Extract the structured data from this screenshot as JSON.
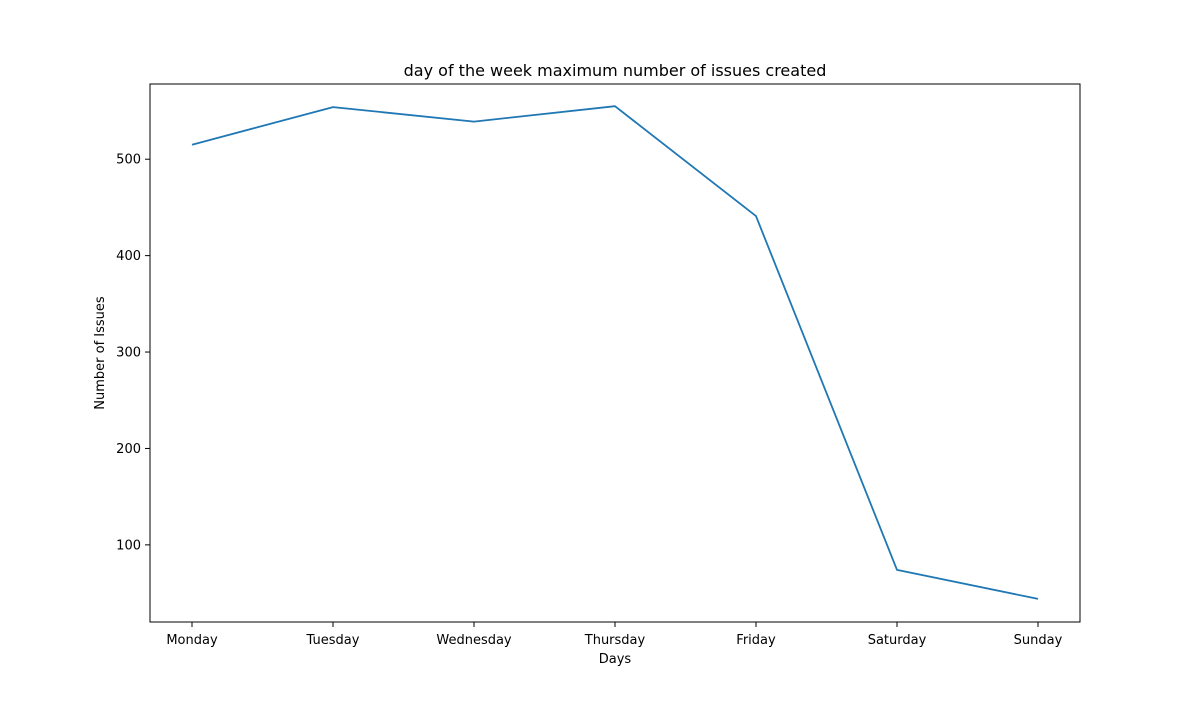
{
  "chart_data": {
    "type": "line",
    "title": "day of the week maximum number of issues created",
    "xlabel": "Days",
    "ylabel": "Number of Issues",
    "categories": [
      "Monday",
      "Tuesday",
      "Wednesday",
      "Thursday",
      "Friday",
      "Saturday",
      "Sunday"
    ],
    "series": [
      {
        "values": [
          515,
          554,
          539,
          555,
          441,
          74,
          44
        ],
        "color": "#1f77b4"
      }
    ],
    "ylim": [
      20,
      578
    ],
    "yticks": [
      100,
      200,
      300,
      400,
      500
    ],
    "grid": false,
    "legend": "none"
  }
}
